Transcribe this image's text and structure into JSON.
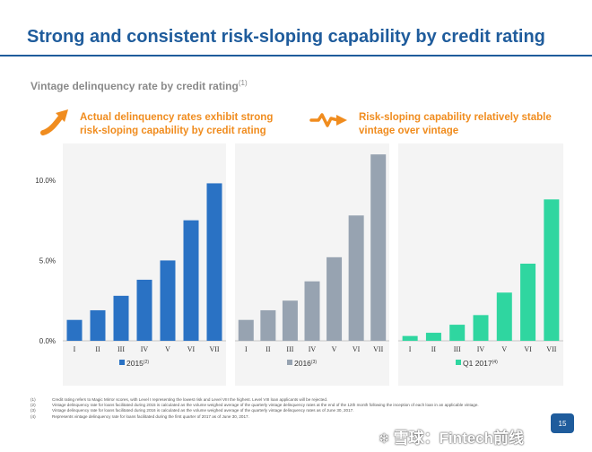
{
  "header": {
    "title": "Strong and consistent risk-sloping capability by credit rating"
  },
  "subtitle": {
    "text": "Vintage delinquency rate by credit rating",
    "note": "(1)"
  },
  "callouts": [
    {
      "icon": "rising-arrow-icon",
      "text": "Actual delinquency rates exhibit strong risk-sloping capability by credit rating"
    },
    {
      "icon": "squiggle-arrow-icon",
      "text": "Risk-sloping capability relatively stable vintage over vintage"
    }
  ],
  "chart_data": {
    "type": "bar",
    "categories": [
      "I",
      "II",
      "III",
      "IV",
      "V",
      "VI",
      "VII"
    ],
    "yticks": [
      "0.0%",
      "5.0%",
      "10.0%"
    ],
    "ylim": [
      0,
      12
    ],
    "series": [
      {
        "name": "2015",
        "note": "(2)",
        "color": "#2a72c4",
        "values": [
          1.3,
          1.9,
          2.8,
          3.8,
          5.0,
          7.5,
          9.8
        ]
      },
      {
        "name": "2016",
        "note": "(3)",
        "color": "#97a3b1",
        "values": [
          1.3,
          1.9,
          2.5,
          3.7,
          5.2,
          7.8,
          11.6
        ]
      },
      {
        "name": "Q1 2017",
        "note": "(4)",
        "color": "#2fd6a0",
        "values": [
          0.3,
          0.5,
          1.0,
          1.6,
          3.0,
          4.8,
          8.8
        ]
      }
    ]
  },
  "footnotes": [
    {
      "num": "(1)",
      "text": "Credit rating refers to Magic Mirror scores, with Level I representing the lowest risk and Level VIII the highest. Level VIII loan applicants will be rejected."
    },
    {
      "num": "(2)",
      "text": "Vintage delinquency rate for loans facilitated during 2015 is calculated as the volume weighed average of the quarterly vintage delinquency rates at the end of the 12th month following the inception of each loan in an applicable vintage."
    },
    {
      "num": "(3)",
      "text": "Vintage delinquency rate for loans facilitated during 2016 is calculated as the volume weighed average of the quarterly vintage delinquency rates as of June 30, 2017."
    },
    {
      "num": "(4)",
      "text": "Represents vintage delinquency rate for loans facilitated during the first quarter of 2017 as of June 30, 2017."
    }
  ],
  "page": {
    "number": "15"
  },
  "watermark": {
    "logo": "❄",
    "text": "雪球：Fintech前线"
  }
}
